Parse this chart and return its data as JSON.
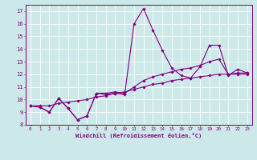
{
  "xlabel": "Windchill (Refroidissement éolien,°C)",
  "bg_color": "#cce8e8",
  "line_color": "#800080",
  "grid_color": "#ffffff",
  "x_data": [
    0,
    1,
    2,
    3,
    4,
    5,
    6,
    7,
    8,
    9,
    10,
    11,
    12,
    13,
    14,
    15,
    16,
    17,
    18,
    19,
    20,
    21,
    22,
    23
  ],
  "y_line1": [
    9.5,
    9.4,
    9.0,
    10.1,
    9.3,
    8.4,
    8.7,
    10.5,
    10.4,
    10.5,
    10.4,
    16.0,
    17.2,
    15.5,
    13.9,
    12.5,
    11.9,
    11.7,
    12.6,
    14.3,
    14.3,
    11.9,
    12.4,
    12.1
  ],
  "y_line2": [
    9.5,
    9.4,
    9.0,
    10.1,
    9.3,
    8.4,
    8.7,
    10.5,
    10.5,
    10.6,
    10.5,
    11.0,
    11.5,
    11.8,
    12.0,
    12.2,
    12.4,
    12.5,
    12.7,
    13.0,
    13.2,
    12.0,
    12.1,
    12.1
  ],
  "y_line3": [
    9.5,
    9.5,
    9.5,
    9.7,
    9.8,
    9.9,
    10.0,
    10.2,
    10.3,
    10.5,
    10.6,
    10.8,
    11.0,
    11.2,
    11.3,
    11.5,
    11.6,
    11.7,
    11.8,
    11.9,
    12.0,
    12.0,
    12.0,
    12.0
  ],
  "xlim": [
    -0.5,
    23.5
  ],
  "ylim": [
    8,
    17.5
  ],
  "yticks": [
    8,
    9,
    10,
    11,
    12,
    13,
    14,
    15,
    16,
    17
  ],
  "xticks": [
    0,
    1,
    2,
    3,
    4,
    5,
    6,
    7,
    8,
    9,
    10,
    11,
    12,
    13,
    14,
    15,
    16,
    17,
    18,
    19,
    20,
    21,
    22,
    23
  ]
}
